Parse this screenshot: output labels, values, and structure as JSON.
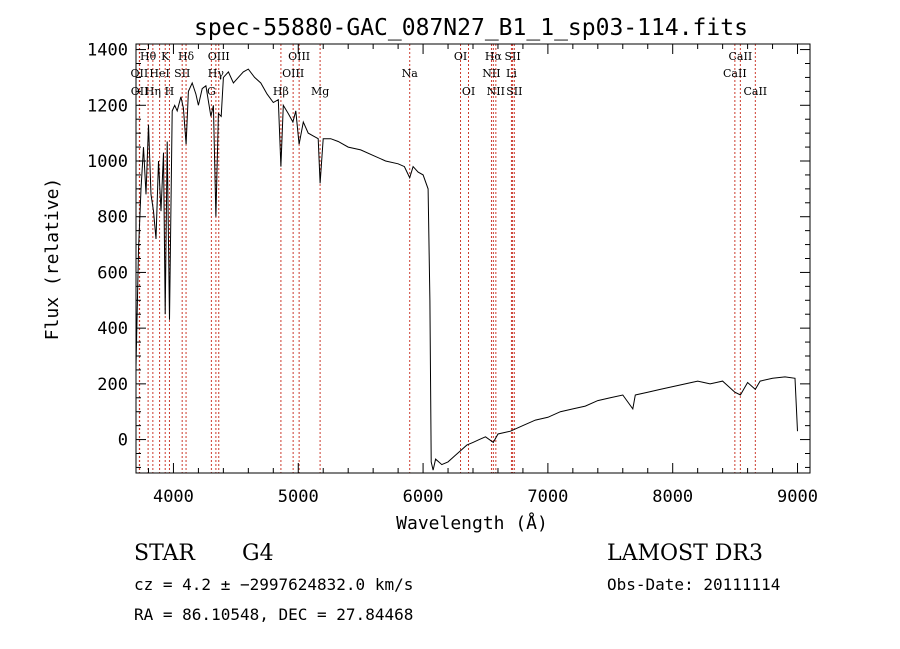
{
  "chart_data": {
    "type": "line",
    "title": "spec-55880-GAC_087N27_B1_1_sp03-114.fits",
    "xlabel": "Wavelength (Å)",
    "ylabel": "Flux (relative)",
    "xlim": [
      3700,
      9100
    ],
    "ylim": [
      -120,
      1420
    ],
    "xticks": [
      4000,
      5000,
      6000,
      7000,
      8000,
      9000
    ],
    "yticks": [
      0,
      200,
      400,
      600,
      800,
      1000,
      1200,
      1400
    ],
    "series": [
      {
        "name": "flux",
        "x": [
          3700,
          3720,
          3740,
          3760,
          3780,
          3800,
          3820,
          3840,
          3860,
          3880,
          3900,
          3920,
          3934,
          3950,
          3968,
          3990,
          4010,
          4030,
          4060,
          4080,
          4101,
          4120,
          4150,
          4180,
          4200,
          4230,
          4260,
          4300,
          4320,
          4340,
          4360,
          4383,
          4400,
          4440,
          4480,
          4520,
          4560,
          4600,
          4650,
          4700,
          4750,
          4800,
          4840,
          4861,
          4880,
          4920,
          4957,
          4980,
          5007,
          5040,
          5080,
          5120,
          5160,
          5175,
          5200,
          5260,
          5320,
          5400,
          5500,
          5600,
          5700,
          5800,
          5850,
          5893,
          5920,
          5960,
          6000,
          6040,
          6055,
          6065,
          6080,
          6100,
          6150,
          6200,
          6250,
          6300,
          6350,
          6400,
          6450,
          6500,
          6563,
          6600,
          6700,
          6800,
          6900,
          7000,
          7100,
          7200,
          7300,
          7400,
          7500,
          7600,
          7680,
          7700,
          7800,
          7900,
          8000,
          8100,
          8200,
          8300,
          8400,
          8498,
          8542,
          8600,
          8662,
          8700,
          8800,
          8900,
          8980,
          9000
        ],
        "y": [
          260,
          680,
          900,
          1050,
          880,
          1130,
          880,
          820,
          720,
          1000,
          820,
          1030,
          450,
          1070,
          430,
          1180,
          1200,
          1180,
          1230,
          1190,
          1060,
          1250,
          1280,
          1240,
          1200,
          1260,
          1270,
          1160,
          1200,
          800,
          1170,
          1160,
          1300,
          1320,
          1280,
          1300,
          1320,
          1330,
          1300,
          1280,
          1240,
          1210,
          1220,
          980,
          1200,
          1170,
          1140,
          1180,
          1060,
          1140,
          1100,
          1090,
          1080,
          920,
          1080,
          1080,
          1070,
          1050,
          1040,
          1020,
          1000,
          990,
          980,
          940,
          980,
          960,
          950,
          900,
          500,
          -80,
          -110,
          -70,
          -90,
          -80,
          -60,
          -40,
          -20,
          -10,
          0,
          10,
          -10,
          20,
          30,
          50,
          70,
          80,
          100,
          110,
          120,
          140,
          150,
          160,
          110,
          160,
          170,
          180,
          190,
          200,
          210,
          200,
          210,
          170,
          160,
          205,
          180,
          210,
          220,
          225,
          220,
          30
        ]
      }
    ],
    "spectral_lines": [
      {
        "name": "Hθ",
        "wavelength": 3797,
        "row": 0
      },
      {
        "name": "OII",
        "wavelength": 3727,
        "row": 1
      },
      {
        "name": "OII",
        "wavelength": 3729,
        "row": 2
      },
      {
        "name": "Hη",
        "wavelength": 3835,
        "row": 2
      },
      {
        "name": "HeI",
        "wavelength": 3889,
        "row": 1
      },
      {
        "name": "K",
        "wavelength": 3934,
        "row": 0
      },
      {
        "name": "H",
        "wavelength": 3968,
        "row": 2
      },
      {
        "name": "SII",
        "wavelength": 4070,
        "row": 1
      },
      {
        "name": "Hδ",
        "wavelength": 4101,
        "row": 0
      },
      {
        "name": "G",
        "wavelength": 4304,
        "row": 2
      },
      {
        "name": "Hγ",
        "wavelength": 4340,
        "row": 1
      },
      {
        "name": "OIII",
        "wavelength": 4363,
        "row": 0
      },
      {
        "name": "Hβ",
        "wavelength": 4861,
        "row": 2
      },
      {
        "name": "OIII",
        "wavelength": 4959,
        "row": 1
      },
      {
        "name": "OIII",
        "wavelength": 5007,
        "row": 0
      },
      {
        "name": "Mg",
        "wavelength": 5175,
        "row": 2
      },
      {
        "name": "Na",
        "wavelength": 5893,
        "row": 1
      },
      {
        "name": "OI",
        "wavelength": 6300,
        "row": 0
      },
      {
        "name": "OI",
        "wavelength": 6364,
        "row": 2
      },
      {
        "name": "NII",
        "wavelength": 6548,
        "row": 1
      },
      {
        "name": "Hα",
        "wavelength": 6563,
        "row": 0
      },
      {
        "name": "NII",
        "wavelength": 6583,
        "row": 2
      },
      {
        "name": "SII",
        "wavelength": 6717,
        "row": 0
      },
      {
        "name": "Li",
        "wavelength": 6708,
        "row": 1
      },
      {
        "name": "SII",
        "wavelength": 6731,
        "row": 2
      },
      {
        "name": "CaII",
        "wavelength": 8498,
        "row": 1
      },
      {
        "name": "CaII",
        "wavelength": 8542,
        "row": 0
      },
      {
        "name": "CaII",
        "wavelength": 8662,
        "row": 2
      }
    ],
    "line_color": "#cc3b2e",
    "curve_color": "#000000"
  },
  "info": {
    "object_class": "STAR",
    "subclass": "G4",
    "survey": "LAMOST DR3",
    "redshift_text": "cz = 4.2 ± −2997624832.0 km/s",
    "obs_date": "Obs-Date: 20111114",
    "coords": "RA =  86.10548, DEC =  27.84468"
  }
}
